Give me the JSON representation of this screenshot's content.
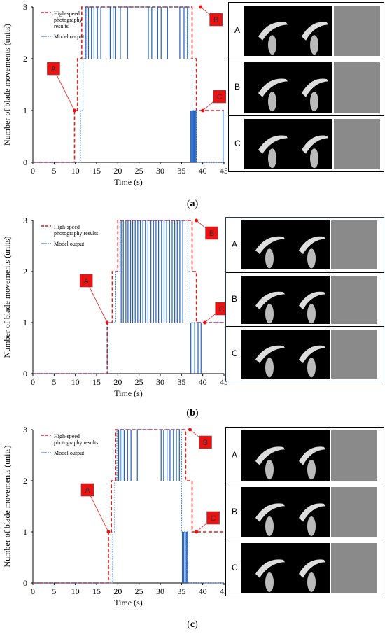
{
  "chart_data": [
    {
      "type": "line",
      "panel_label": "(a)",
      "panel_letter": "a",
      "ylabel": "Number of blade movements (units)",
      "xlabel": "Time (s)",
      "xlim": [
        0,
        45
      ],
      "ylim": [
        0,
        3
      ],
      "xticks": [
        0,
        5,
        10,
        15,
        20,
        25,
        30,
        35,
        40,
        45
      ],
      "yticks": [
        0,
        1,
        2,
        3
      ],
      "legend": [
        "High-speed photography results",
        "Model output"
      ],
      "legend_lines": [
        [
          "High-speed",
          "photography",
          "results"
        ],
        [
          "Model output"
        ]
      ],
      "legend_position": "top-left",
      "series": [
        {
          "name": "High-speed photography results",
          "style": "dashed",
          "color": "#e02020",
          "x": [
            0,
            9.8,
            9.8,
            10.5,
            10.5,
            11.5,
            11.5,
            37.5,
            37.5,
            38.5,
            38.5,
            45
          ],
          "y": [
            0,
            0,
            1,
            1,
            2,
            2,
            3,
            3,
            2,
            2,
            1,
            1
          ]
        },
        {
          "name": "Model output",
          "style": "dotted",
          "color": "#2060c0",
          "x": [
            0,
            11.2,
            11.2,
            11.8,
            11.8,
            12.3,
            12.3,
            37,
            37,
            37.5,
            37.5,
            38.5,
            38.5,
            45
          ],
          "y": [
            0,
            0,
            1,
            1,
            2,
            2,
            3,
            3,
            2,
            2,
            1,
            1,
            0,
            0
          ],
          "spikes": [
            12.5,
            13.1,
            13.8,
            14.4,
            15.2,
            16.0,
            18.2,
            18.9,
            19.5,
            20.6,
            22.3,
            27.2,
            28.0,
            29.4,
            30.2,
            31.7,
            34.6,
            35.6,
            36.4
          ],
          "spike_low": 2,
          "spike_high": 3,
          "tail_spikes": [
            37.2,
            37.4,
            37.6,
            37.8,
            38.0,
            38.2,
            38.4,
            44.8
          ],
          "tail_low": 0,
          "tail_high": 1
        }
      ],
      "annotations": [
        {
          "text": "A",
          "x": 9.8,
          "y": 1
        },
        {
          "text": "B",
          "x": 39.5,
          "y": 3
        },
        {
          "text": "C",
          "x": 40,
          "y": 1
        }
      ],
      "image_rows": [
        "A",
        "B",
        "C"
      ]
    },
    {
      "type": "line",
      "panel_label": "(b)",
      "panel_letter": "b",
      "ylabel": "Number of blade movements (units)",
      "xlabel": "Time (s)",
      "xlim": [
        0,
        45
      ],
      "ylim": [
        0,
        3
      ],
      "xticks": [
        0,
        5,
        10,
        15,
        20,
        25,
        30,
        35,
        40,
        45
      ],
      "yticks": [
        0,
        1,
        2,
        3
      ],
      "legend": [
        "High-speed photography results",
        "Model output"
      ],
      "legend_lines": [
        [
          "High-speed",
          "photography results"
        ],
        [
          "Model output"
        ]
      ],
      "legend_position": "top-left",
      "series": [
        {
          "name": "High-speed photography results",
          "style": "dashed",
          "color": "#e02020",
          "x": [
            0,
            17.5,
            17.5,
            18.7,
            18.7,
            20,
            20,
            37.5,
            37.5,
            38.5,
            38.5,
            45
          ],
          "y": [
            0,
            0,
            1,
            1,
            2,
            2,
            3,
            3,
            2,
            2,
            1,
            1
          ]
        },
        {
          "name": "Model output",
          "style": "dotted",
          "color": "#2060c0",
          "x": [
            0,
            17.5,
            17.5,
            19.5,
            19.5,
            20.5,
            20.5,
            36.5,
            36.5,
            37,
            37,
            45
          ],
          "y": [
            0,
            0,
            1,
            1,
            2,
            2,
            3,
            3,
            2,
            2,
            1,
            1
          ],
          "spikes": [
            20.8,
            21.3,
            21.9,
            22.4,
            23.0,
            23.5,
            24.1,
            24.7,
            25.3,
            25.9,
            26.5,
            27.1,
            27.8,
            28.4,
            29.0,
            29.6,
            30.3,
            30.9,
            31.5,
            32.2,
            32.8,
            33.4,
            34.0,
            34.6,
            35.3
          ],
          "spike_low": 1,
          "spike_high": 3,
          "tail_spikes": [
            37.2,
            38.1,
            38.9,
            39.6
          ],
          "tail_low": 0,
          "tail_high": 1
        }
      ],
      "annotations": [
        {
          "text": "A",
          "x": 17.5,
          "y": 1
        },
        {
          "text": "B",
          "x": 38.5,
          "y": 3
        },
        {
          "text": "C",
          "x": 40.5,
          "y": 1
        }
      ],
      "image_rows": [
        "A",
        "B",
        "C"
      ]
    },
    {
      "type": "line",
      "panel_label": "(c)",
      "panel_letter": "c",
      "ylabel": "Number of blade movements (units)",
      "xlabel": "Time (s)",
      "xlim": [
        0,
        45
      ],
      "ylim": [
        0,
        3
      ],
      "xticks": [
        0,
        5,
        10,
        15,
        20,
        25,
        30,
        35,
        40,
        45
      ],
      "yticks": [
        0,
        1,
        2,
        3
      ],
      "legend": [
        "High-speed photography results",
        "Model output"
      ],
      "legend_lines": [
        [
          "High-speed",
          "photography results"
        ],
        [
          "Model output"
        ]
      ],
      "legend_position": "top-left",
      "series": [
        {
          "name": "High-speed photography results",
          "style": "dashed",
          "color": "#e02020",
          "x": [
            0,
            17.8,
            17.8,
            18.5,
            18.5,
            19.5,
            19.5,
            36,
            36,
            37.5,
            37.5,
            45
          ],
          "y": [
            0,
            0,
            1,
            1,
            2,
            2,
            3,
            3,
            2,
            2,
            1,
            1
          ]
        },
        {
          "name": "Model output",
          "style": "dotted",
          "color": "#2060c0",
          "x": [
            0,
            18.8,
            18.8,
            19.3,
            19.3,
            19.8,
            19.8,
            35,
            35,
            36.5,
            36.5,
            45
          ],
          "y": [
            0,
            0,
            1,
            1,
            2,
            2,
            3,
            3,
            1,
            1,
            0,
            0
          ],
          "spikes": [
            20.2,
            20.6,
            21.0,
            21.5,
            22.3,
            23.1,
            24.6,
            30.2,
            30.8,
            31.6,
            32.3,
            33.1,
            33.8,
            34.5
          ],
          "spike_low": 2,
          "spike_high": 3,
          "tail_spikes": [
            35.2,
            35.5,
            35.8,
            36.1,
            36.3
          ],
          "tail_low": 0,
          "tail_high": 1
        }
      ],
      "annotations": [
        {
          "text": "A",
          "x": 17.8,
          "y": 1
        },
        {
          "text": "B",
          "x": 37,
          "y": 3
        },
        {
          "text": "C",
          "x": 38.5,
          "y": 1
        }
      ],
      "image_rows": [
        "A",
        "B",
        "C"
      ]
    }
  ],
  "colors": {
    "photo_series": "#e02020",
    "model_series": "#2060c0",
    "annotation_box": "#ee1111",
    "annotation_text": "#ffffff",
    "panel_b_border": "#1f3a66"
  }
}
